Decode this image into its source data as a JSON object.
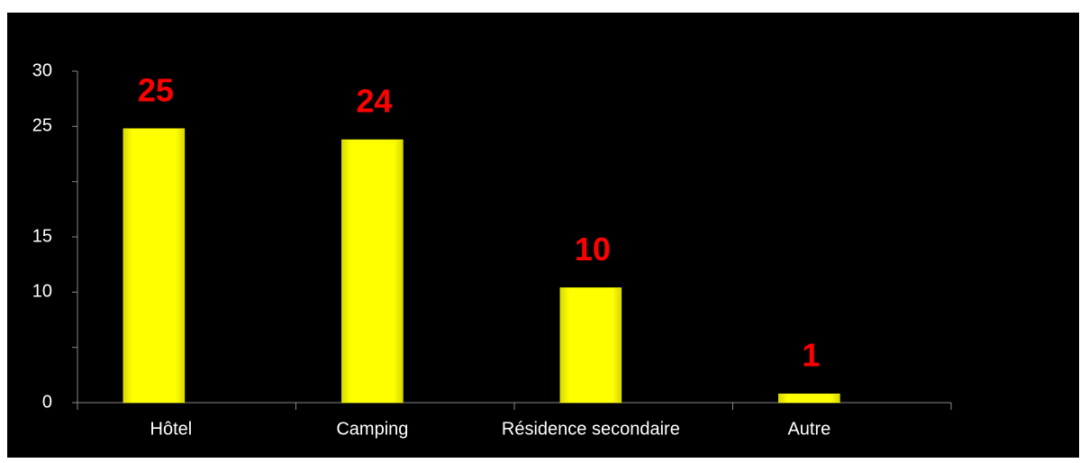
{
  "chart_data": {
    "type": "bar",
    "categories": [
      "Hôtel",
      "Camping",
      "Résidence secondaire",
      "Autre"
    ],
    "values": [
      24.8,
      23.8,
      10.4,
      0.8
    ],
    "value_labels": [
      "25",
      "24",
      "10",
      "1"
    ],
    "color": "#ffff00",
    "value_label_color": "#ff0000",
    "ylim": [
      0,
      30
    ],
    "yticks": [
      0,
      10,
      15,
      25,
      30
    ],
    "yticks_unlabeled": [
      5,
      20
    ],
    "grid": false
  }
}
